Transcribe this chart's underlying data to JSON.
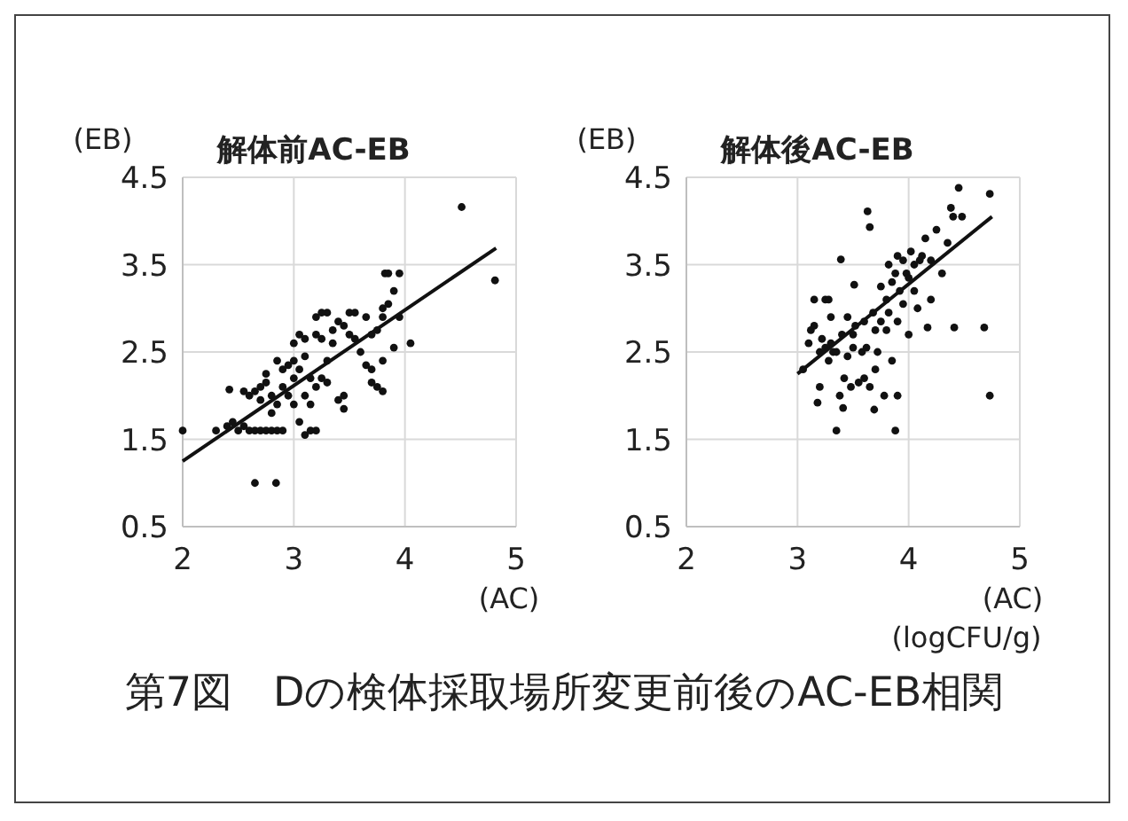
{
  "chart_data": [
    {
      "type": "scatter",
      "title": "解体前AC-EB",
      "xlabel": "(AC)",
      "ylabel": "(EB)",
      "xlim": [
        2,
        5
      ],
      "xticks": [
        2,
        3,
        4,
        5
      ],
      "ylim": [
        0.5,
        4.5
      ],
      "yticks": [
        0.5,
        1.5,
        2.5,
        3.5,
        4.5
      ],
      "grid": true,
      "annotations": [
        "第7図　Dの検体採取場所変更前後のAC-EB相関"
      ],
      "series": [
        {
          "marker": "circle",
          "color": "#111111",
          "x": [
            2.0,
            2.3,
            2.4,
            2.45,
            2.42,
            2.5,
            2.55,
            2.6,
            2.65,
            2.7,
            2.75,
            2.8,
            2.85,
            2.9,
            2.65,
            2.84,
            2.6,
            2.65,
            2.7,
            2.7,
            2.75,
            2.8,
            2.8,
            2.85,
            2.85,
            2.9,
            2.9,
            2.95,
            2.95,
            3.0,
            3.0,
            3.0,
            3.05,
            3.05,
            3.05,
            3.1,
            3.1,
            3.1,
            3.15,
            3.15,
            3.15,
            3.2,
            3.2,
            3.2,
            3.2,
            3.25,
            3.25,
            3.3,
            3.3,
            3.3,
            3.35,
            3.35,
            3.4,
            3.4,
            3.45,
            3.45,
            3.45,
            3.5,
            3.5,
            3.55,
            3.6,
            3.65,
            3.65,
            3.7,
            3.7,
            3.75,
            3.75,
            3.8,
            3.8,
            3.8,
            3.8,
            3.82,
            3.85,
            3.85,
            3.9,
            3.9,
            3.95,
            3.95,
            4.05,
            4.51,
            4.81,
            2.55,
            2.75,
            3.0,
            3.1,
            3.25,
            3.55,
            3.7
          ],
          "values": [
            1.6,
            1.6,
            1.65,
            1.7,
            2.07,
            1.6,
            1.65,
            1.6,
            1.6,
            1.6,
            1.6,
            1.6,
            1.6,
            1.6,
            1.0,
            1.0,
            2.0,
            2.05,
            1.95,
            2.1,
            2.15,
            2.0,
            1.8,
            1.9,
            2.4,
            2.3,
            2.1,
            2.0,
            2.35,
            1.9,
            2.2,
            2.4,
            2.3,
            2.7,
            1.7,
            1.55,
            2.0,
            2.45,
            1.6,
            1.9,
            2.2,
            2.1,
            2.7,
            1.6,
            2.9,
            2.65,
            2.2,
            2.95,
            2.4,
            2.15,
            2.75,
            2.6,
            2.85,
            1.95,
            1.85,
            2.0,
            2.8,
            2.95,
            2.7,
            2.95,
            2.5,
            2.35,
            2.9,
            2.3,
            2.15,
            2.1,
            2.75,
            2.4,
            2.05,
            3.0,
            2.9,
            3.4,
            3.4,
            3.05,
            2.55,
            3.2,
            2.9,
            3.4,
            2.6,
            4.16,
            3.32,
            2.05,
            2.25,
            2.6,
            2.65,
            2.95,
            2.65,
            2.7
          ]
        },
        {
          "type": "line",
          "color": "#111111",
          "x": [
            2.0,
            4.82
          ],
          "values": [
            1.25,
            3.69
          ]
        }
      ]
    },
    {
      "type": "scatter",
      "title": "解体後AC-EB",
      "xlabel": "(AC)",
      "ylabel": "(EB)",
      "xlim": [
        2,
        5
      ],
      "xticks": [
        2,
        3,
        4,
        5
      ],
      "ylim": [
        0.5,
        4.5
      ],
      "yticks": [
        0.5,
        1.5,
        2.5,
        3.5,
        4.5
      ],
      "grid": true,
      "annotations": [
        "(logCFU/g)"
      ],
      "series": [
        {
          "marker": "circle",
          "color": "#111111",
          "x": [
            3.05,
            3.1,
            3.12,
            3.15,
            3.15,
            3.18,
            3.2,
            3.2,
            3.22,
            3.25,
            3.25,
            3.28,
            3.3,
            3.3,
            3.32,
            3.35,
            3.35,
            3.38,
            3.39,
            3.4,
            3.41,
            3.42,
            3.45,
            3.48,
            3.5,
            3.51,
            3.52,
            3.55,
            3.58,
            3.6,
            3.6,
            3.62,
            3.63,
            3.65,
            3.65,
            3.68,
            3.69,
            3.7,
            3.72,
            3.75,
            3.75,
            3.78,
            3.8,
            3.8,
            3.82,
            3.82,
            3.85,
            3.85,
            3.88,
            3.88,
            3.9,
            3.9,
            3.92,
            3.95,
            3.95,
            3.98,
            4.0,
            4.0,
            4.02,
            4.05,
            4.08,
            4.1,
            4.12,
            4.15,
            4.17,
            4.2,
            4.2,
            4.25,
            4.3,
            4.35,
            4.38,
            4.4,
            4.41,
            4.45,
            4.48,
            4.68,
            4.73,
            4.73,
            3.5,
            3.28,
            3.45,
            3.7,
            3.9,
            4.05
          ],
          "values": [
            2.3,
            2.6,
            2.75,
            2.8,
            3.1,
            1.92,
            2.5,
            2.1,
            2.65,
            2.55,
            3.1,
            2.4,
            2.6,
            2.9,
            2.5,
            1.6,
            2.5,
            2.0,
            3.56,
            2.7,
            1.86,
            2.2,
            2.45,
            2.1,
            2.55,
            3.27,
            2.8,
            2.15,
            2.5,
            2.2,
            2.85,
            2.55,
            4.11,
            3.93,
            2.1,
            2.95,
            1.84,
            2.3,
            2.5,
            2.85,
            3.25,
            2.0,
            2.75,
            3.1,
            2.95,
            3.5,
            2.4,
            3.3,
            1.6,
            3.4,
            2.0,
            2.85,
            3.2,
            3.55,
            3.05,
            3.4,
            2.7,
            3.35,
            3.65,
            3.2,
            3.0,
            3.55,
            3.6,
            3.8,
            2.78,
            3.55,
            3.1,
            3.9,
            3.4,
            3.75,
            4.15,
            4.05,
            2.78,
            4.38,
            4.05,
            2.78,
            4.31,
            2.0,
            2.7,
            3.1,
            2.9,
            2.75,
            3.6,
            3.5
          ]
        },
        {
          "type": "line",
          "color": "#111111",
          "x": [
            3.0,
            4.75
          ],
          "values": [
            2.25,
            4.05
          ]
        }
      ]
    }
  ]
}
